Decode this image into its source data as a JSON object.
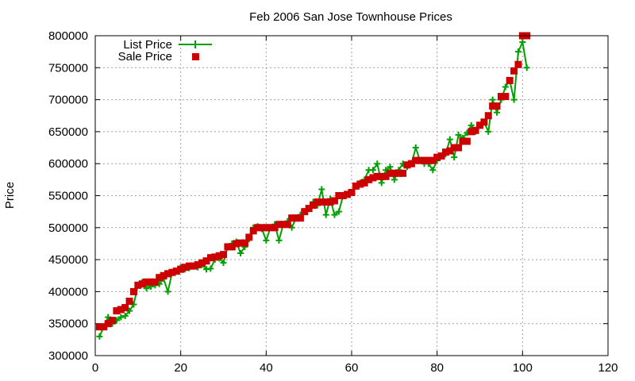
{
  "chart_data": {
    "type": "line",
    "title": "Feb 2006 San Jose Townhouse Prices",
    "xlabel": "",
    "ylabel": "Price",
    "xlim": [
      0,
      120
    ],
    "ylim": [
      300000,
      800000
    ],
    "xticks": [
      "0",
      "20",
      "40",
      "60",
      "80",
      "100",
      "120"
    ],
    "yticks": [
      "300000",
      "350000",
      "400000",
      "450000",
      "500000",
      "550000",
      "600000",
      "650000",
      "700000",
      "750000",
      "800000"
    ],
    "grid": true,
    "legend_position": "top-left",
    "x": [
      1,
      2,
      3,
      4,
      5,
      6,
      7,
      8,
      9,
      10,
      11,
      12,
      13,
      14,
      15,
      16,
      17,
      18,
      19,
      20,
      21,
      22,
      23,
      24,
      25,
      26,
      27,
      28,
      29,
      30,
      31,
      32,
      33,
      34,
      35,
      36,
      37,
      38,
      39,
      40,
      41,
      42,
      43,
      44,
      45,
      46,
      47,
      48,
      49,
      50,
      51,
      52,
      53,
      54,
      55,
      56,
      57,
      58,
      59,
      60,
      61,
      62,
      63,
      64,
      65,
      66,
      67,
      68,
      69,
      70,
      71,
      72,
      73,
      74,
      75,
      76,
      77,
      78,
      79,
      80,
      81,
      82,
      83,
      84,
      85,
      86,
      87,
      88,
      89,
      90,
      91,
      92,
      93,
      94,
      95,
      96,
      97,
      98,
      99,
      100,
      101
    ],
    "series": [
      {
        "name": "List Price",
        "color": "#00a000",
        "style": "line-plus",
        "values": [
          330000,
          345000,
          360000,
          350000,
          355000,
          360000,
          362000,
          370000,
          380000,
          410000,
          415000,
          405000,
          408000,
          410000,
          412000,
          420000,
          400000,
          430000,
          432000,
          438000,
          435000,
          437000,
          440000,
          438000,
          442000,
          435000,
          436000,
          450000,
          452000,
          445000,
          470000,
          475000,
          478000,
          460000,
          470000,
          482000,
          500000,
          502000,
          498000,
          480000,
          500000,
          505000,
          480000,
          505000,
          510000,
          500000,
          515000,
          520000,
          525000,
          530000,
          540000,
          535000,
          560000,
          520000,
          545000,
          520000,
          525000,
          550000,
          552000,
          555000,
          565000,
          570000,
          575000,
          590000,
          590000,
          600000,
          570000,
          590000,
          595000,
          575000,
          590000,
          600000,
          595000,
          600000,
          625000,
          605000,
          600000,
          600000,
          590000,
          605000,
          612000,
          615000,
          638000,
          610000,
          645000,
          640000,
          648000,
          660000,
          650000,
          660000,
          665000,
          650000,
          700000,
          680000,
          700000,
          720000,
          730000,
          700000,
          775000,
          790000,
          750000
        ]
      },
      {
        "name": "Sale Price",
        "color": "#cc0000",
        "style": "square",
        "values": [
          345000,
          345000,
          350000,
          355000,
          370000,
          372000,
          375000,
          385000,
          400000,
          410000,
          412000,
          415000,
          415000,
          415000,
          422000,
          425000,
          428000,
          430000,
          432000,
          435000,
          438000,
          440000,
          440000,
          442000,
          445000,
          448000,
          453000,
          454000,
          456000,
          458000,
          470000,
          470000,
          475000,
          476000,
          476000,
          485000,
          495000,
          500000,
          500000,
          500000,
          500000,
          500000,
          505000,
          505000,
          505000,
          515000,
          515000,
          515000,
          525000,
          530000,
          535000,
          540000,
          540000,
          540000,
          540000,
          542000,
          550000,
          550000,
          552000,
          555000,
          565000,
          568000,
          570000,
          575000,
          578000,
          580000,
          580000,
          580000,
          585000,
          585000,
          585000,
          585000,
          598000,
          600000,
          605000,
          605000,
          605000,
          605000,
          605000,
          610000,
          612000,
          618000,
          620000,
          625000,
          625000,
          635000,
          635000,
          650000,
          652000,
          660000,
          665000,
          675000,
          690000,
          690000,
          705000,
          705000,
          730000,
          745000,
          755000,
          800000,
          800000
        ]
      }
    ]
  }
}
